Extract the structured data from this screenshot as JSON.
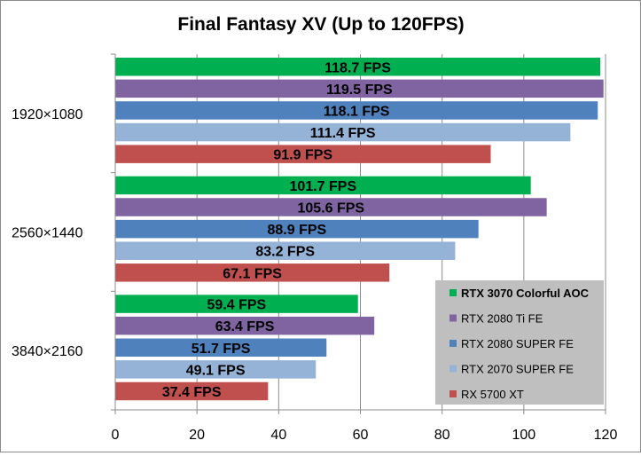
{
  "chart_data": {
    "type": "bar",
    "orientation": "horizontal",
    "title": "Final Fantasy XV (Up to 120FPS)",
    "categories": [
      "1920×1080",
      "2560×1440",
      "3840×2160"
    ],
    "series": [
      {
        "name": "RTX 3070 Colorful AOC",
        "color": "#00b050",
        "values": [
          118.7,
          101.7,
          59.4
        ],
        "labels": [
          "118.7 FPS",
          "101.7 FPS",
          "59.4 FPS"
        ]
      },
      {
        "name": "RTX 2080 Ti FE",
        "color": "#8064a2",
        "values": [
          119.5,
          105.6,
          63.4
        ],
        "labels": [
          "119.5 FPS",
          "105.6 FPS",
          "63.4 FPS"
        ]
      },
      {
        "name": "RTX 2080 SUPER FE",
        "color": "#4f81bd",
        "values": [
          118.1,
          88.9,
          51.7
        ],
        "labels": [
          "118.1 FPS",
          "88.9 FPS",
          "51.7 FPS"
        ]
      },
      {
        "name": "RTX 2070 SUPER FE",
        "color": "#95b3d7",
        "values": [
          111.4,
          83.2,
          49.1
        ],
        "labels": [
          "111.4 FPS",
          "83.2 FPS",
          "49.1 FPS"
        ]
      },
      {
        "name": "RX 5700 XT",
        "color": "#c0504d",
        "values": [
          91.9,
          67.1,
          37.4
        ],
        "labels": [
          "91.9 FPS",
          "67.1 FPS",
          "37.4 FPS"
        ]
      }
    ],
    "xlim": [
      0,
      120
    ],
    "xticks": [
      "0",
      "20",
      "40",
      "60",
      "80",
      "100",
      "120"
    ],
    "xlabel": "",
    "ylabel": "",
    "grid": "vertical",
    "legend_position": "bottom-right",
    "legend_background": "#bfbfbf"
  }
}
